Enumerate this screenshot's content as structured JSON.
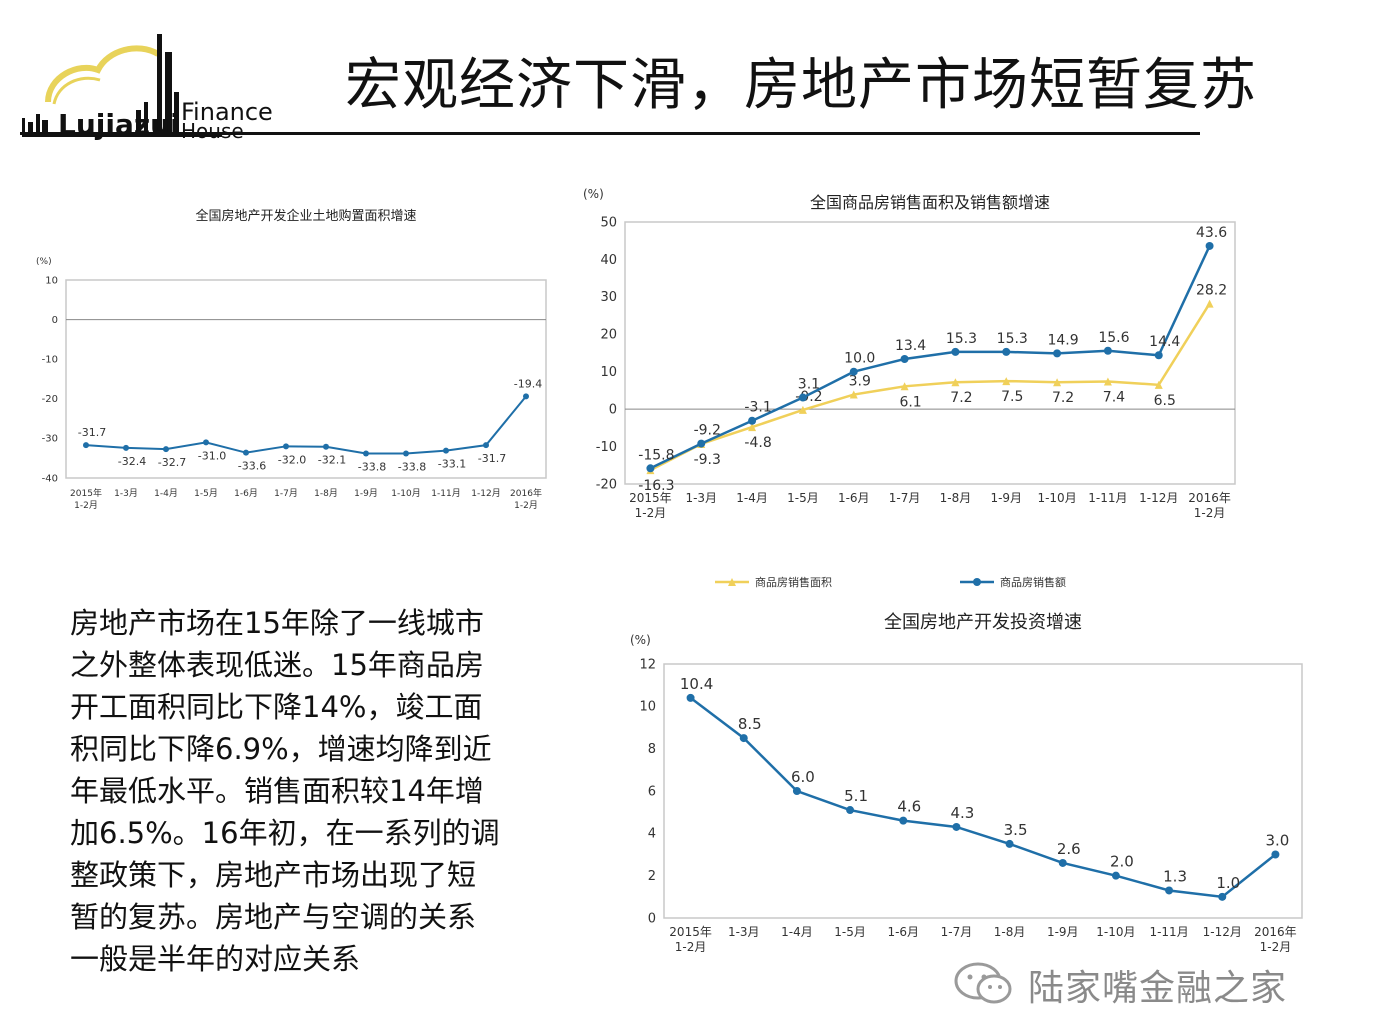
{
  "slide": {
    "title": "宏观经济下滑，房地产市场短暂复苏",
    "logo_text_line1": "Finance",
    "logo_text_line2": "House",
    "logo_word": "Lujiazui",
    "body": "房地产市场在15年除了一线城市\n之外整体表现低迷。15年商品房\n开工面积同比下降14%，竣工面\n积同比下降6.9%，增速均降到近\n年最低水平。销售面积较14年增\n加6.5%。16年初，在一系列的调\n整政策下，房地产市场出现了短\n暂的复苏。房地产与空调的关系\n一般是半年的对应关系",
    "watermark": "陆家嘴金融之家",
    "colors": {
      "blue": "#1f6fa8",
      "yellow": "#f0d05a",
      "grid": "#cccccc",
      "text": "#333333"
    }
  },
  "chart_data": [
    {
      "type": "line",
      "title": "全国房地产开发企业土地购置面积增速",
      "unit_label": "(%)",
      "categories": [
        "2015年\n1-2月",
        "1-3月",
        "1-4月",
        "1-5月",
        "1-6月",
        "1-7月",
        "1-8月",
        "1-9月",
        "1-10月",
        "1-11月",
        "1-12月",
        "2016年\n1-2月"
      ],
      "series": [
        {
          "values": [
            -31.7,
            -32.4,
            -32.7,
            -31.0,
            -33.6,
            -32.0,
            -32.1,
            -33.8,
            -33.8,
            -33.1,
            -31.7,
            -19.4
          ],
          "labels": [
            "-31.7",
            "-32.4",
            "-32.7",
            "-31.0",
            "-33.6",
            "-32.0",
            "-32.1",
            "-33.8",
            "-33.8",
            "-33.1",
            "-31.7",
            "-19.4"
          ],
          "color": "#1f6fa8"
        }
      ],
      "ylim": [
        -40,
        10
      ],
      "yticks": [
        10,
        0,
        -10,
        -20,
        -30,
        -40
      ],
      "grid": false
    },
    {
      "type": "line",
      "title": "全国商品房销售面积及销售额增速",
      "unit_label": "(%)",
      "categories": [
        "2015年\n1-2月",
        "1-3月",
        "1-4月",
        "1-5月",
        "1-6月",
        "1-7月",
        "1-8月",
        "1-9月",
        "1-10月",
        "1-11月",
        "1-12月",
        "2016年\n1-2月"
      ],
      "series": [
        {
          "name": "商品房销售面积",
          "color": "#f0d05a",
          "values": [
            -16.3,
            -9.3,
            -4.8,
            -0.2,
            3.9,
            6.1,
            7.2,
            7.5,
            7.2,
            7.4,
            6.5,
            28.2
          ],
          "labels": [
            "-16.3",
            "-9.3",
            "-4.8",
            "-0.2",
            "3.9",
            "6.1",
            "7.2",
            "7.5",
            "7.2",
            "7.4",
            "6.5",
            "28.2"
          ]
        },
        {
          "name": "商品房销售额",
          "color": "#1f6fa8",
          "values": [
            -15.8,
            -9.2,
            -3.1,
            3.1,
            10.0,
            13.4,
            15.3,
            15.3,
            14.9,
            15.6,
            14.4,
            43.6
          ],
          "labels": [
            "-15.8",
            "-9.2",
            "-3.1",
            "3.1",
            "10.0",
            "13.4",
            "15.3",
            "15.3",
            "14.9",
            "15.6",
            "14.4",
            "43.6"
          ]
        }
      ],
      "ylim": [
        -20,
        50
      ],
      "yticks": [
        50,
        40,
        30,
        20,
        10,
        0,
        -10,
        -20
      ],
      "legend": "bottom",
      "grid": false
    },
    {
      "type": "line",
      "title": "全国房地产开发投资增速",
      "unit_label": "(%)",
      "categories": [
        "2015年\n1-2月",
        "1-3月",
        "1-4月",
        "1-5月",
        "1-6月",
        "1-7月",
        "1-8月",
        "1-9月",
        "1-10月",
        "1-11月",
        "1-12月",
        "2016年\n1-2月"
      ],
      "series": [
        {
          "values": [
            10.4,
            8.5,
            6.0,
            5.1,
            4.6,
            4.3,
            3.5,
            2.6,
            2.0,
            1.3,
            1.0,
            3.0
          ],
          "labels": [
            "10.4",
            "8.5",
            "6.0",
            "5.1",
            "4.6",
            "4.3",
            "3.5",
            "2.6",
            "2.0",
            "1.3",
            "1.0",
            "3.0"
          ],
          "color": "#1f6fa8"
        }
      ],
      "ylim": [
        0,
        12
      ],
      "yticks": [
        12,
        10,
        8,
        6,
        4,
        2,
        0
      ],
      "grid": false
    }
  ]
}
